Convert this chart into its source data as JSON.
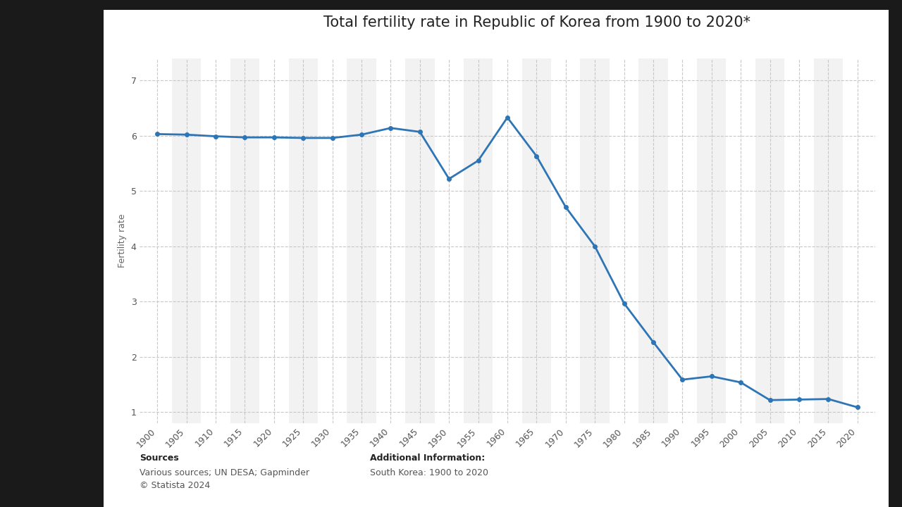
{
  "title": "Total fertility rate in Republic of Korea from 1900 to 2020*",
  "ylabel": "Fertility rate",
  "outer_bg_color": "#1a1a1a",
  "inner_bg_color": "#ffffff",
  "plot_bg_color": "#f2f2f2",
  "plot_bg_alt_color": "#ffffff",
  "line_color": "#2e75b6",
  "marker_color": "#2e75b6",
  "grid_color": "#c8c8c8",
  "years": [
    1900,
    1905,
    1910,
    1915,
    1920,
    1925,
    1930,
    1935,
    1940,
    1945,
    1950,
    1955,
    1960,
    1965,
    1970,
    1975,
    1980,
    1985,
    1990,
    1995,
    2000,
    2005,
    2010,
    2015,
    2020
  ],
  "values": [
    6.03,
    6.02,
    5.99,
    5.97,
    5.97,
    5.96,
    5.96,
    6.02,
    6.14,
    6.07,
    5.22,
    5.55,
    6.33,
    5.63,
    4.71,
    4.0,
    2.97,
    2.27,
    1.59,
    1.65,
    1.54,
    1.22,
    1.23,
    1.24,
    1.09
  ],
  "ylim": [
    0.8,
    7.4
  ],
  "yticks": [
    1,
    2,
    3,
    4,
    5,
    6,
    7
  ],
  "sources_label": "Sources",
  "sources_body": "Various sources; UN DESA; Gapminder\n© Statista 2024",
  "additional_label": "Additional Information:",
  "additional_body": "South Korea: 1900 to 2020",
  "title_fontsize": 15,
  "axis_label_fontsize": 9,
  "tick_fontsize": 9,
  "footer_fontsize": 9
}
